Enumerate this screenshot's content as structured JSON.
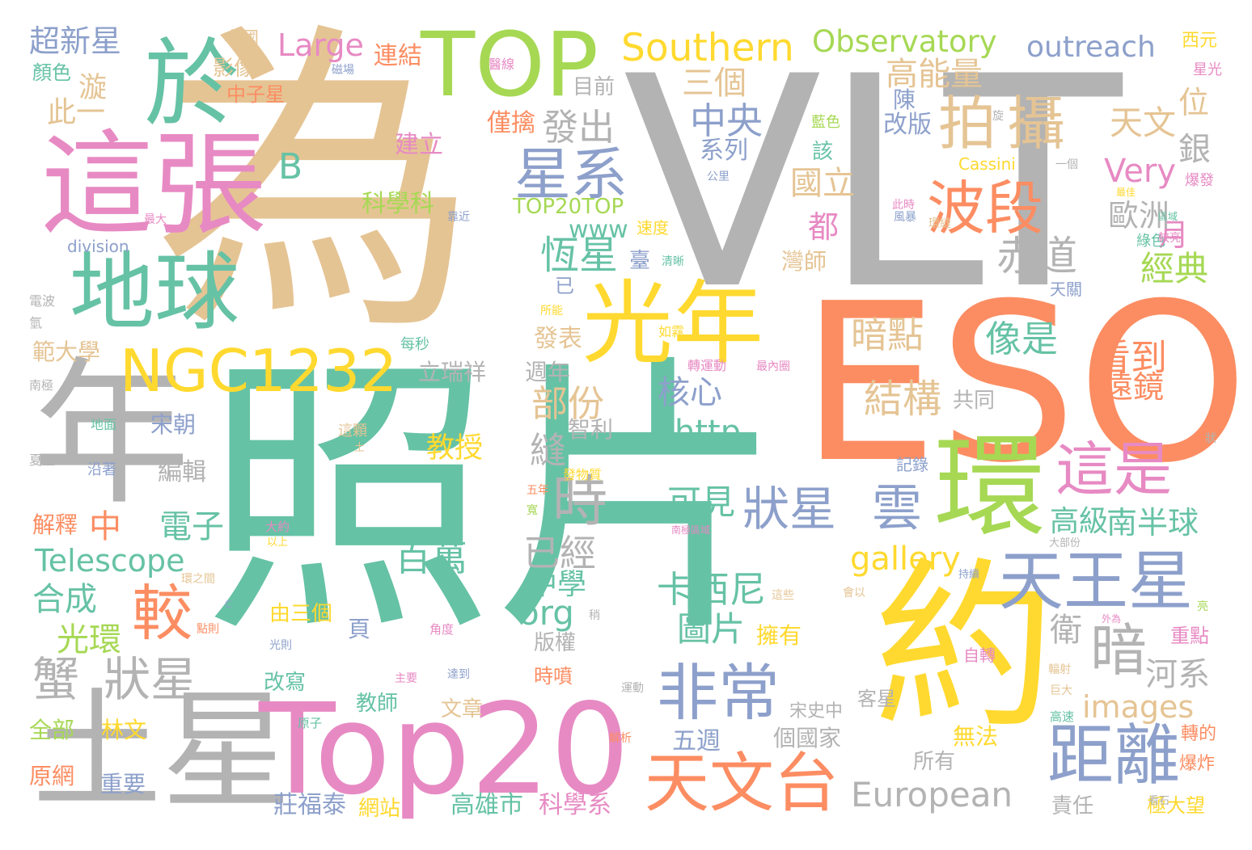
{
  "palette": {
    "green": "#66c2a5",
    "orange": "#fc8d62",
    "blue": "#8da0cb",
    "pink": "#e78ac3",
    "lime": "#a6d854",
    "yellow": "#ffd92f",
    "tan": "#e5c494",
    "gray": "#b3b3b3"
  },
  "words": [
    {
      "text": "為",
      "color": "tan"
    },
    {
      "text": "VLT",
      "color": "gray"
    },
    {
      "text": "照片",
      "color": "green"
    },
    {
      "text": "ESO",
      "color": "orange"
    },
    {
      "text": "約",
      "color": "yellow"
    },
    {
      "text": "年",
      "color": "gray"
    },
    {
      "text": "土星",
      "color": "gray"
    },
    {
      "text": "這張",
      "color": "pink"
    },
    {
      "text": "Top20",
      "color": "pink"
    },
    {
      "text": "TOP",
      "color": "lime"
    },
    {
      "text": "於",
      "color": "green"
    },
    {
      "text": "地球",
      "color": "green"
    },
    {
      "text": "光年",
      "color": "yellow"
    },
    {
      "text": "環",
      "color": "lime"
    },
    {
      "text": "NGC1232",
      "color": "yellow"
    },
    {
      "text": "天王星",
      "color": "blue"
    },
    {
      "text": "天文台",
      "color": "orange"
    },
    {
      "text": "距離",
      "color": "blue"
    },
    {
      "text": "非常",
      "color": "blue"
    },
    {
      "text": "拍",
      "color": "tan"
    },
    {
      "text": "攝",
      "color": "tan"
    },
    {
      "text": "波段",
      "color": "orange"
    },
    {
      "text": "星系",
      "color": "blue"
    },
    {
      "text": "這是",
      "color": "pink"
    },
    {
      "text": "狀星",
      "color": "blue"
    },
    {
      "text": "雲",
      "color": "blue"
    },
    {
      "text": "暗",
      "color": "gray"
    },
    {
      "text": "蟹",
      "color": "gray"
    },
    {
      "text": "狀星",
      "color": "gray"
    },
    {
      "text": "時",
      "color": "gray"
    },
    {
      "text": "較",
      "color": "orange"
    },
    {
      "text": "Southern",
      "color": "yellow"
    },
    {
      "text": "Observatory",
      "color": "lime"
    },
    {
      "text": "European",
      "color": "gray"
    },
    {
      "text": "outreach",
      "color": "blue"
    },
    {
      "text": "超新星",
      "color": "blue"
    },
    {
      "text": "Large",
      "color": "pink"
    },
    {
      "text": "高能量",
      "color": "tan"
    },
    {
      "text": "三個",
      "color": "tan"
    },
    {
      "text": "天文",
      "color": "tan"
    },
    {
      "text": "中央",
      "color": "blue"
    },
    {
      "text": "發出",
      "color": "gray"
    },
    {
      "text": "Very",
      "color": "pink"
    },
    {
      "text": "銀",
      "color": "gray"
    },
    {
      "text": "位",
      "color": "tan"
    },
    {
      "text": "赤道",
      "color": "gray"
    },
    {
      "text": "經典",
      "color": "lime"
    },
    {
      "text": "月",
      "color": "pink"
    },
    {
      "text": "歐洲",
      "color": "gray"
    },
    {
      "text": "恆星",
      "color": "green"
    },
    {
      "text": "都",
      "color": "pink"
    },
    {
      "text": "國立",
      "color": "tan"
    },
    {
      "text": "B",
      "color": "green"
    },
    {
      "text": "暗點",
      "color": "tan"
    },
    {
      "text": "像是",
      "color": "green"
    },
    {
      "text": "看到",
      "color": "orange"
    },
    {
      "text": "遠鏡",
      "color": "orange"
    },
    {
      "text": "結構",
      "color": "tan"
    },
    {
      "text": "核心",
      "color": "blue"
    },
    {
      "text": "部份",
      "color": "tan"
    },
    {
      "text": "http",
      "color": "green"
    },
    {
      "text": "縫",
      "color": "gray"
    },
    {
      "text": "已經",
      "color": "gray"
    },
    {
      "text": "百萬",
      "color": "green"
    },
    {
      "text": "可見",
      "color": "green"
    },
    {
      "text": "卡西尼",
      "color": "green"
    },
    {
      "text": "圖片",
      "color": "green"
    },
    {
      "text": "org",
      "color": "green"
    },
    {
      "text": "中學",
      "color": "green"
    },
    {
      "text": "衛",
      "color": "gray"
    },
    {
      "text": "河系",
      "color": "gray"
    },
    {
      "text": "images",
      "color": "tan"
    },
    {
      "text": "gallery",
      "color": "yellow"
    },
    {
      "text": "南半球",
      "color": "green"
    },
    {
      "text": "高級",
      "color": "green"
    },
    {
      "text": "Telescope",
      "color": "green"
    },
    {
      "text": "合成",
      "color": "green"
    },
    {
      "text": "電子",
      "color": "green"
    },
    {
      "text": "中",
      "color": "orange"
    },
    {
      "text": "光環",
      "color": "lime"
    },
    {
      "text": "教授",
      "color": "yellow"
    },
    {
      "text": "編輯",
      "color": "gray"
    },
    {
      "text": "宋朝",
      "color": "blue"
    },
    {
      "text": "漩",
      "color": "tan"
    },
    {
      "text": "此一",
      "color": "tan"
    },
    {
      "text": "影像",
      "color": "tan"
    },
    {
      "text": "中國",
      "color": "tan"
    },
    {
      "text": "中子星",
      "color": "orange"
    },
    {
      "text": "顏色",
      "color": "green"
    },
    {
      "text": "連結",
      "color": "orange"
    },
    {
      "text": "目前",
      "color": "gray"
    },
    {
      "text": "僅擒",
      "color": "orange"
    },
    {
      "text": "建立",
      "color": "pink"
    },
    {
      "text": "科學科",
      "color": "lime"
    },
    {
      "text": "TOP20TOP",
      "color": "lime"
    },
    {
      "text": "www",
      "color": "green"
    },
    {
      "text": "系列",
      "color": "blue"
    },
    {
      "text": "改版",
      "color": "blue"
    },
    {
      "text": "陳",
      "color": "blue"
    },
    {
      "text": "該",
      "color": "green"
    },
    {
      "text": "Cassini",
      "color": "yellow"
    },
    {
      "text": "division",
      "color": "blue"
    },
    {
      "text": "臺",
      "color": "blue"
    },
    {
      "text": "灣師",
      "color": "tan"
    },
    {
      "text": "已",
      "color": "blue"
    },
    {
      "text": "發表",
      "color": "tan"
    },
    {
      "text": "週年",
      "color": "gray"
    },
    {
      "text": "立瑞祥",
      "color": "gray"
    },
    {
      "text": "範大學",
      "color": "tan"
    },
    {
      "text": "共同",
      "color": "gray"
    },
    {
      "text": "智利",
      "color": "gray"
    },
    {
      "text": "五週",
      "color": "blue"
    },
    {
      "text": "個國家",
      "color": "gray"
    },
    {
      "text": "所有",
      "color": "gray"
    },
    {
      "text": "責任",
      "color": "gray"
    },
    {
      "text": "高雄市",
      "color": "green"
    },
    {
      "text": "科學系",
      "color": "pink"
    },
    {
      "text": "莊福泰",
      "color": "blue"
    },
    {
      "text": "網站",
      "color": "yellow"
    },
    {
      "text": "重要",
      "color": "blue"
    },
    {
      "text": "原網",
      "color": "orange"
    },
    {
      "text": "全部",
      "color": "lime"
    },
    {
      "text": "林文",
      "color": "yellow"
    },
    {
      "text": "解釋",
      "color": "orange"
    },
    {
      "text": "由三個",
      "color": "yellow"
    },
    {
      "text": "頁",
      "color": "blue"
    },
    {
      "text": "版權",
      "color": "gray"
    },
    {
      "text": "擁有",
      "color": "yellow"
    },
    {
      "text": "改寫",
      "color": "green"
    },
    {
      "text": "教師",
      "color": "green"
    },
    {
      "text": "文章",
      "color": "tan"
    },
    {
      "text": "無法",
      "color": "yellow"
    },
    {
      "text": "極大望",
      "color": "yellow"
    },
    {
      "text": "時噴",
      "color": "orange"
    },
    {
      "text": "記錄",
      "color": "blue"
    },
    {
      "text": "重點",
      "color": "pink"
    },
    {
      "text": "自轉",
      "color": "pink"
    },
    {
      "text": "客星",
      "color": "gray"
    },
    {
      "text": "轉的",
      "color": "orange"
    },
    {
      "text": "爆炸",
      "color": "orange"
    },
    {
      "text": "宋史中",
      "color": "gray"
    },
    {
      "text": "西元",
      "color": "yellow"
    },
    {
      "text": "星光",
      "color": "pink"
    },
    {
      "text": "爆發",
      "color": "pink"
    },
    {
      "text": "綠色",
      "color": "green"
    },
    {
      "text": "藍色",
      "color": "lime"
    },
    {
      "text": "每秒",
      "color": "green"
    },
    {
      "text": "轉運動",
      "color": "pink"
    },
    {
      "text": "天關",
      "color": "blue"
    },
    {
      "text": "所能",
      "color": "yellow"
    },
    {
      "text": "如霧",
      "color": "yellow"
    },
    {
      "text": "最內圈",
      "color": "pink"
    },
    {
      "text": "速度",
      "color": "yellow"
    },
    {
      "text": "這顆",
      "color": "tan"
    },
    {
      "text": "發物質",
      "color": "yellow"
    },
    {
      "text": "沿著",
      "color": "blue"
    },
    {
      "text": "地面",
      "color": "green"
    },
    {
      "text": "夏至",
      "color": "gray"
    },
    {
      "text": "南極",
      "color": "gray"
    },
    {
      "text": "電波",
      "color": "gray"
    },
    {
      "text": "氫",
      "color": "gray"
    },
    {
      "text": "最大",
      "color": "pink"
    },
    {
      "text": "靠近",
      "color": "blue"
    },
    {
      "text": "醫線",
      "color": "pink"
    },
    {
      "text": "磁場",
      "color": "blue"
    },
    {
      "text": "旋",
      "color": "gray"
    },
    {
      "text": "一個",
      "color": "gray"
    },
    {
      "text": "公里",
      "color": "blue"
    },
    {
      "text": "此時",
      "color": "pink"
    },
    {
      "text": "最佳",
      "color": "yellow"
    },
    {
      "text": "風暴",
      "color": "blue"
    },
    {
      "text": "區域",
      "color": "green"
    },
    {
      "text": "較亮",
      "color": "pink"
    },
    {
      "text": "環縫",
      "color": "tan"
    },
    {
      "text": "清晰",
      "color": "green"
    },
    {
      "text": "大約",
      "color": "pink"
    },
    {
      "text": "以上",
      "color": "yellow"
    },
    {
      "text": "五年",
      "color": "orange"
    },
    {
      "text": "寬",
      "color": "lime"
    },
    {
      "text": "南極區域",
      "color": "pink"
    },
    {
      "text": "大部份",
      "color": "gray"
    },
    {
      "text": "持續",
      "color": "blue"
    },
    {
      "text": "亮",
      "color": "lime"
    },
    {
      "text": "外為",
      "color": "pink"
    },
    {
      "text": "會以",
      "color": "tan"
    },
    {
      "text": "這些",
      "color": "tan"
    },
    {
      "text": "稍",
      "color": "gray"
    },
    {
      "text": "C",
      "color": "blue"
    },
    {
      "text": "環之間",
      "color": "tan"
    },
    {
      "text": "點則",
      "color": "orange"
    },
    {
      "text": "角度",
      "color": "pink"
    },
    {
      "text": "光則",
      "color": "blue"
    },
    {
      "text": "主要",
      "color": "pink"
    },
    {
      "text": "達到",
      "color": "blue"
    },
    {
      "text": "運動",
      "color": "gray"
    },
    {
      "text": "輻射",
      "color": "tan"
    },
    {
      "text": "巨大",
      "color": "tan"
    },
    {
      "text": "高速",
      "color": "green"
    },
    {
      "text": "解析",
      "color": "orange"
    },
    {
      "text": "原子",
      "color": "green"
    },
    {
      "text": "看石",
      "color": "gray"
    },
    {
      "text": "狀",
      "color": "gray"
    },
    {
      "text": "土",
      "color": "tan"
    }
  ]
}
